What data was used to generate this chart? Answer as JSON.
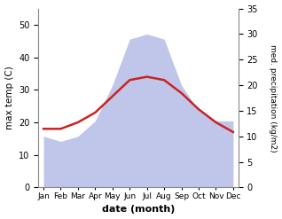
{
  "months": [
    "Jan",
    "Feb",
    "Mar",
    "Apr",
    "May",
    "Jun",
    "Jul",
    "Aug",
    "Sep",
    "Oct",
    "Nov",
    "Dec"
  ],
  "max_temp": [
    18,
    18,
    20,
    23,
    28,
    33,
    34,
    33,
    29,
    24,
    20,
    17
  ],
  "precipitation": [
    10,
    9,
    10,
    13,
    20,
    29,
    30,
    29,
    20,
    15,
    13,
    13
  ],
  "temp_color": "#cc2222",
  "precip_fill_color": "#b8c0e8",
  "temp_ylim": [
    0,
    55
  ],
  "precip_ylim": [
    0,
    35
  ],
  "temp_yticks": [
    0,
    10,
    20,
    30,
    40,
    50
  ],
  "precip_yticks": [
    0,
    5,
    10,
    15,
    20,
    25,
    30,
    35
  ],
  "xlabel": "date (month)",
  "ylabel_left": "max temp (C)",
  "ylabel_right": "med. precipitation (kg/m2)"
}
